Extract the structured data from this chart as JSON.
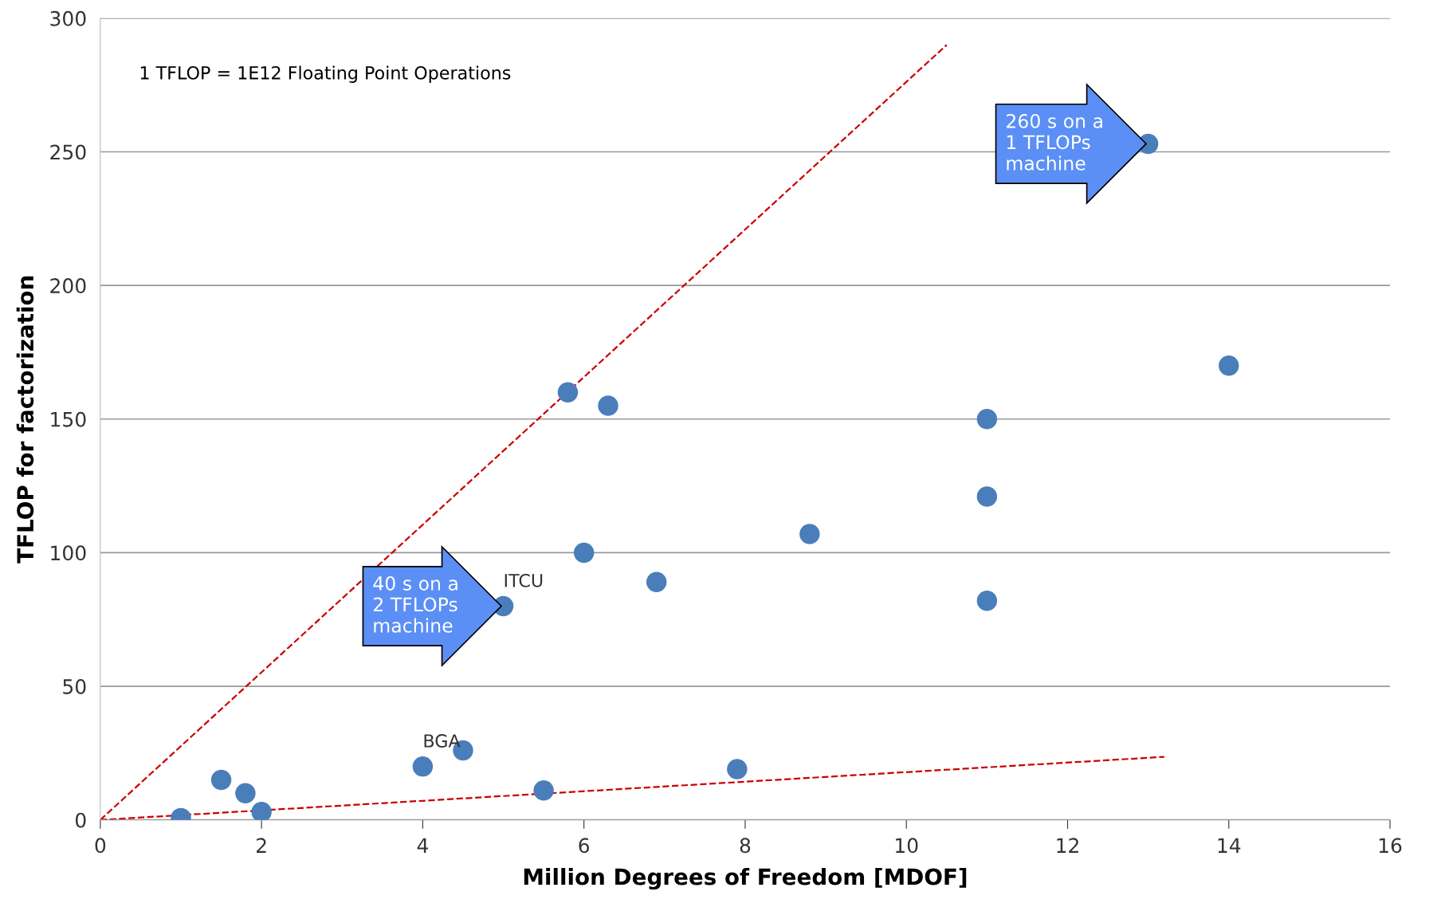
{
  "chart_data": {
    "type": "scatter",
    "xlabel": "Million Degrees of Freedom [MDOF]",
    "ylabel": "TFLOP for factorization",
    "xlim": [
      0,
      16
    ],
    "ylim": [
      0,
      300
    ],
    "xticks": [
      0,
      2,
      4,
      6,
      8,
      10,
      12,
      14,
      16
    ],
    "yticks": [
      0,
      50,
      100,
      150,
      200,
      250,
      300
    ],
    "grid": "y",
    "marker": "circle",
    "legend": false,
    "series": [
      {
        "color": "#4a7ebb",
        "x": [
          1.0,
          1.5,
          1.8,
          2.0,
          4.0,
          4.5,
          5.5,
          5.0,
          5.8,
          6.3,
          6.0,
          6.9,
          7.9,
          8.8,
          11.0,
          11.0,
          11.0,
          13.0,
          14.0
        ],
        "values": [
          0.7,
          15,
          10,
          3,
          20,
          26,
          11,
          80,
          160,
          155,
          100,
          89,
          19,
          107,
          150,
          121,
          82,
          253,
          170
        ]
      },
      {
        "type": "line",
        "color": "#cc0000",
        "line_style": "dashed",
        "marker": "none",
        "x": [
          0,
          10.5
        ],
        "values": [
          0,
          290
        ]
      },
      {
        "type": "line",
        "color": "#cc0000",
        "line_style": "dashed",
        "marker": "none",
        "x": [
          0,
          13.2
        ],
        "values": [
          0,
          23.6
        ]
      }
    ],
    "annotations": [
      "1 TFLOP = 1E12 Floating Point Operations",
      {
        "text": "260 s on a\n1 TFLOPs\nmachine",
        "x": 13.0,
        "y": 253
      },
      {
        "text": "40 s on a\n2 TFLOPs\nmachine",
        "x": 5.0,
        "y": 80
      },
      {
        "text": "ITCU",
        "x": 5.0,
        "y": 80
      },
      {
        "text": "BGA",
        "x": 4.0,
        "y": 20
      }
    ]
  }
}
